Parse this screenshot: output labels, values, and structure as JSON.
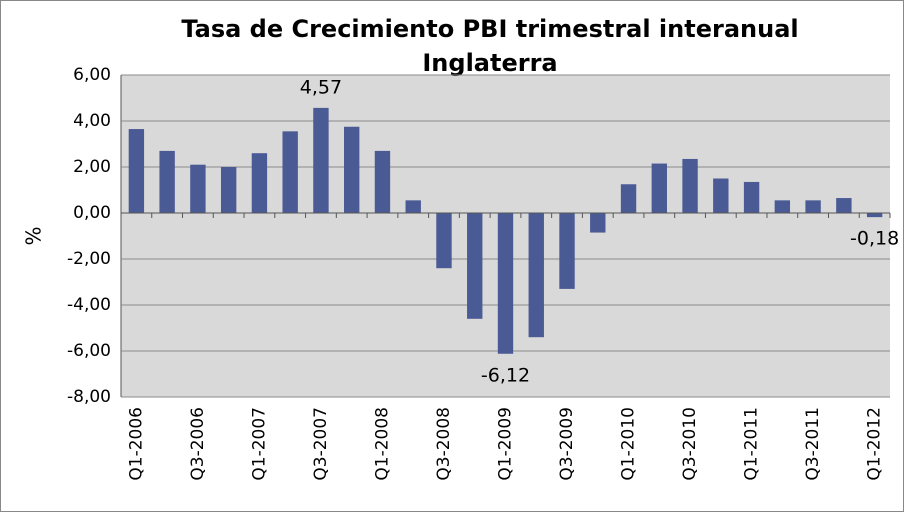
{
  "chart_data": {
    "type": "bar",
    "title": [
      "Tasa de Crecimiento PBI trimestral interanual",
      "Inglaterra"
    ],
    "y_label": "%",
    "categories": [
      "Q1-2006",
      null,
      "Q3-2006",
      null,
      "Q1-2007",
      null,
      "Q3-2007",
      null,
      "Q1-2008",
      null,
      "Q3-2008",
      null,
      "Q1-2009",
      null,
      "Q3-2009",
      null,
      "Q1-2010",
      null,
      "Q3-2010",
      null,
      "Q1-2011",
      null,
      "Q3-2011",
      null,
      "Q1-2012"
    ],
    "values": [
      3.65,
      2.7,
      2.1,
      2.0,
      2.6,
      3.55,
      4.57,
      3.75,
      2.7,
      0.55,
      -2.4,
      -4.6,
      -6.12,
      -5.4,
      -3.3,
      -0.85,
      1.25,
      2.15,
      2.35,
      1.5,
      1.35,
      0.55,
      0.55,
      0.65,
      -0.18
    ],
    "value_labels": [
      null,
      null,
      null,
      null,
      null,
      null,
      "4,57",
      null,
      null,
      null,
      null,
      null,
      "-6,12",
      null,
      null,
      null,
      null,
      null,
      null,
      null,
      null,
      null,
      null,
      null,
      "-0,18"
    ],
    "color": "#4a5a94",
    "ylim": [
      -8,
      6
    ],
    "yticks": [
      {
        "value": -8,
        "label": "-8,00"
      },
      {
        "value": -6,
        "label": "-6,00"
      },
      {
        "value": -4,
        "label": "-4,00"
      },
      {
        "value": -2,
        "label": "-2,00"
      },
      {
        "value": 0,
        "label": "0,00"
      },
      {
        "value": 2,
        "label": "2,00"
      },
      {
        "value": 4,
        "label": "4,00"
      },
      {
        "value": 6,
        "label": "6,00"
      }
    ],
    "grid": true
  }
}
